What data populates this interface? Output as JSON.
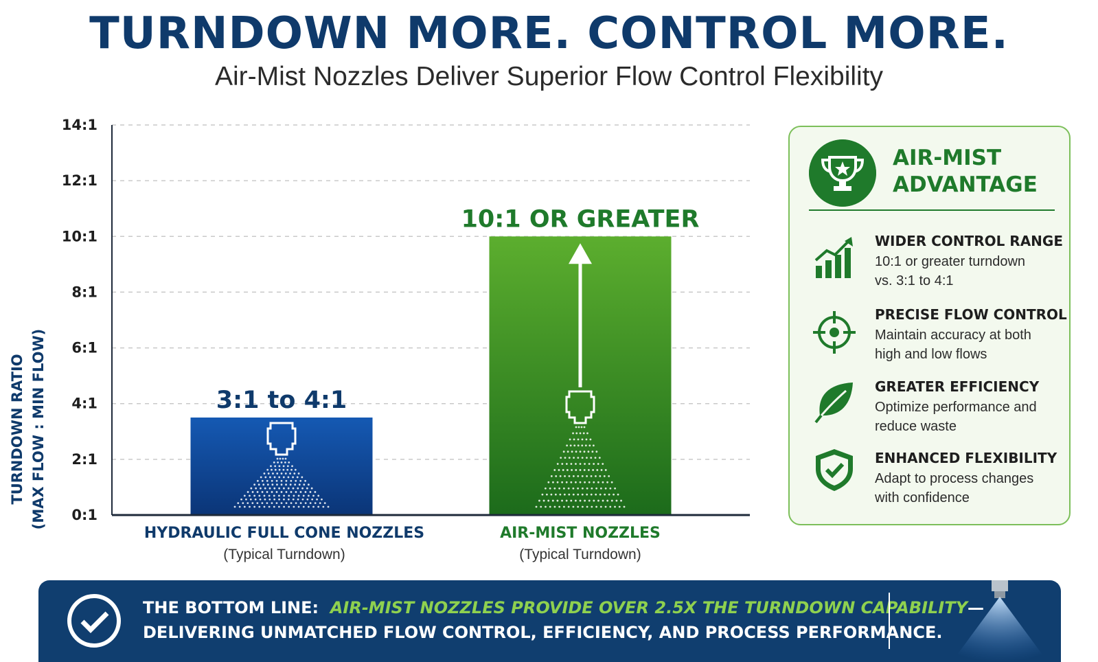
{
  "header": {
    "title": "TURNDOWN MORE. CONTROL MORE.",
    "subtitle": "Air-Mist Nozzles Deliver Superior Flow Control Flexibility"
  },
  "chart_data": {
    "type": "bar",
    "ylabel_line1": "TURNDOWN RATIO",
    "ylabel_line2": "(MAX FLOW : MIN FLOW)",
    "ylim": [
      0,
      14
    ],
    "yticks": [
      0,
      2,
      4,
      6,
      8,
      10,
      12,
      14
    ],
    "ytick_labels": [
      "0:1",
      "2:1",
      "4:1",
      "6:1",
      "8:1",
      "10:1",
      "12:1",
      "14:1"
    ],
    "grid": true,
    "categories": [
      {
        "name": "HYDRAULIC FULL CONE NOZZLES",
        "sub": "(Typical Turndown)",
        "value": 3.5,
        "label": "3:1 to 4:1",
        "color": "#0f4fa3",
        "label_color": "#0f3a6b"
      },
      {
        "name": "AIR-MIST NOZZLES",
        "sub": "(Typical Turndown)",
        "value": 10,
        "label": "10:1 OR GREATER",
        "color": "#2e8b24",
        "label_color": "#1f7a2b"
      }
    ]
  },
  "panel": {
    "title_line1": "AIR-MIST",
    "title_line2": "ADVANTAGE",
    "icon": "trophy-icon",
    "features": [
      {
        "icon": "growth-chart-icon",
        "title": "WIDER CONTROL RANGE",
        "desc_line1": "10:1 or greater turndown",
        "desc_line2": "vs. 3:1 to 4:1"
      },
      {
        "icon": "target-icon",
        "title": "PRECISE FLOW CONTROL",
        "desc_line1": "Maintain accuracy at both",
        "desc_line2": "high and low flows"
      },
      {
        "icon": "leaf-icon",
        "title": "GREATER EFFICIENCY",
        "desc_line1": "Optimize performance and",
        "desc_line2": "reduce waste"
      },
      {
        "icon": "shield-check-icon",
        "title": "ENHANCED FLEXIBILITY",
        "desc_line1": "Adapt to process changes",
        "desc_line2": "with confidence"
      }
    ]
  },
  "bottom": {
    "lead": "THE BOTTOM LINE:",
    "highlight": "AIR-MIST NOZZLES PROVIDE OVER 2.5X THE TURNDOWN CAPABILITY",
    "dash": "—",
    "line2": "DELIVERING UNMATCHED FLOW CONTROL, EFFICIENCY, AND PROCESS PERFORMANCE."
  },
  "colors": {
    "navy": "#0f3a6b",
    "green": "#1f7a2b",
    "blue_bar": "#0f4fa3",
    "green_bar": "#2e8b24"
  }
}
